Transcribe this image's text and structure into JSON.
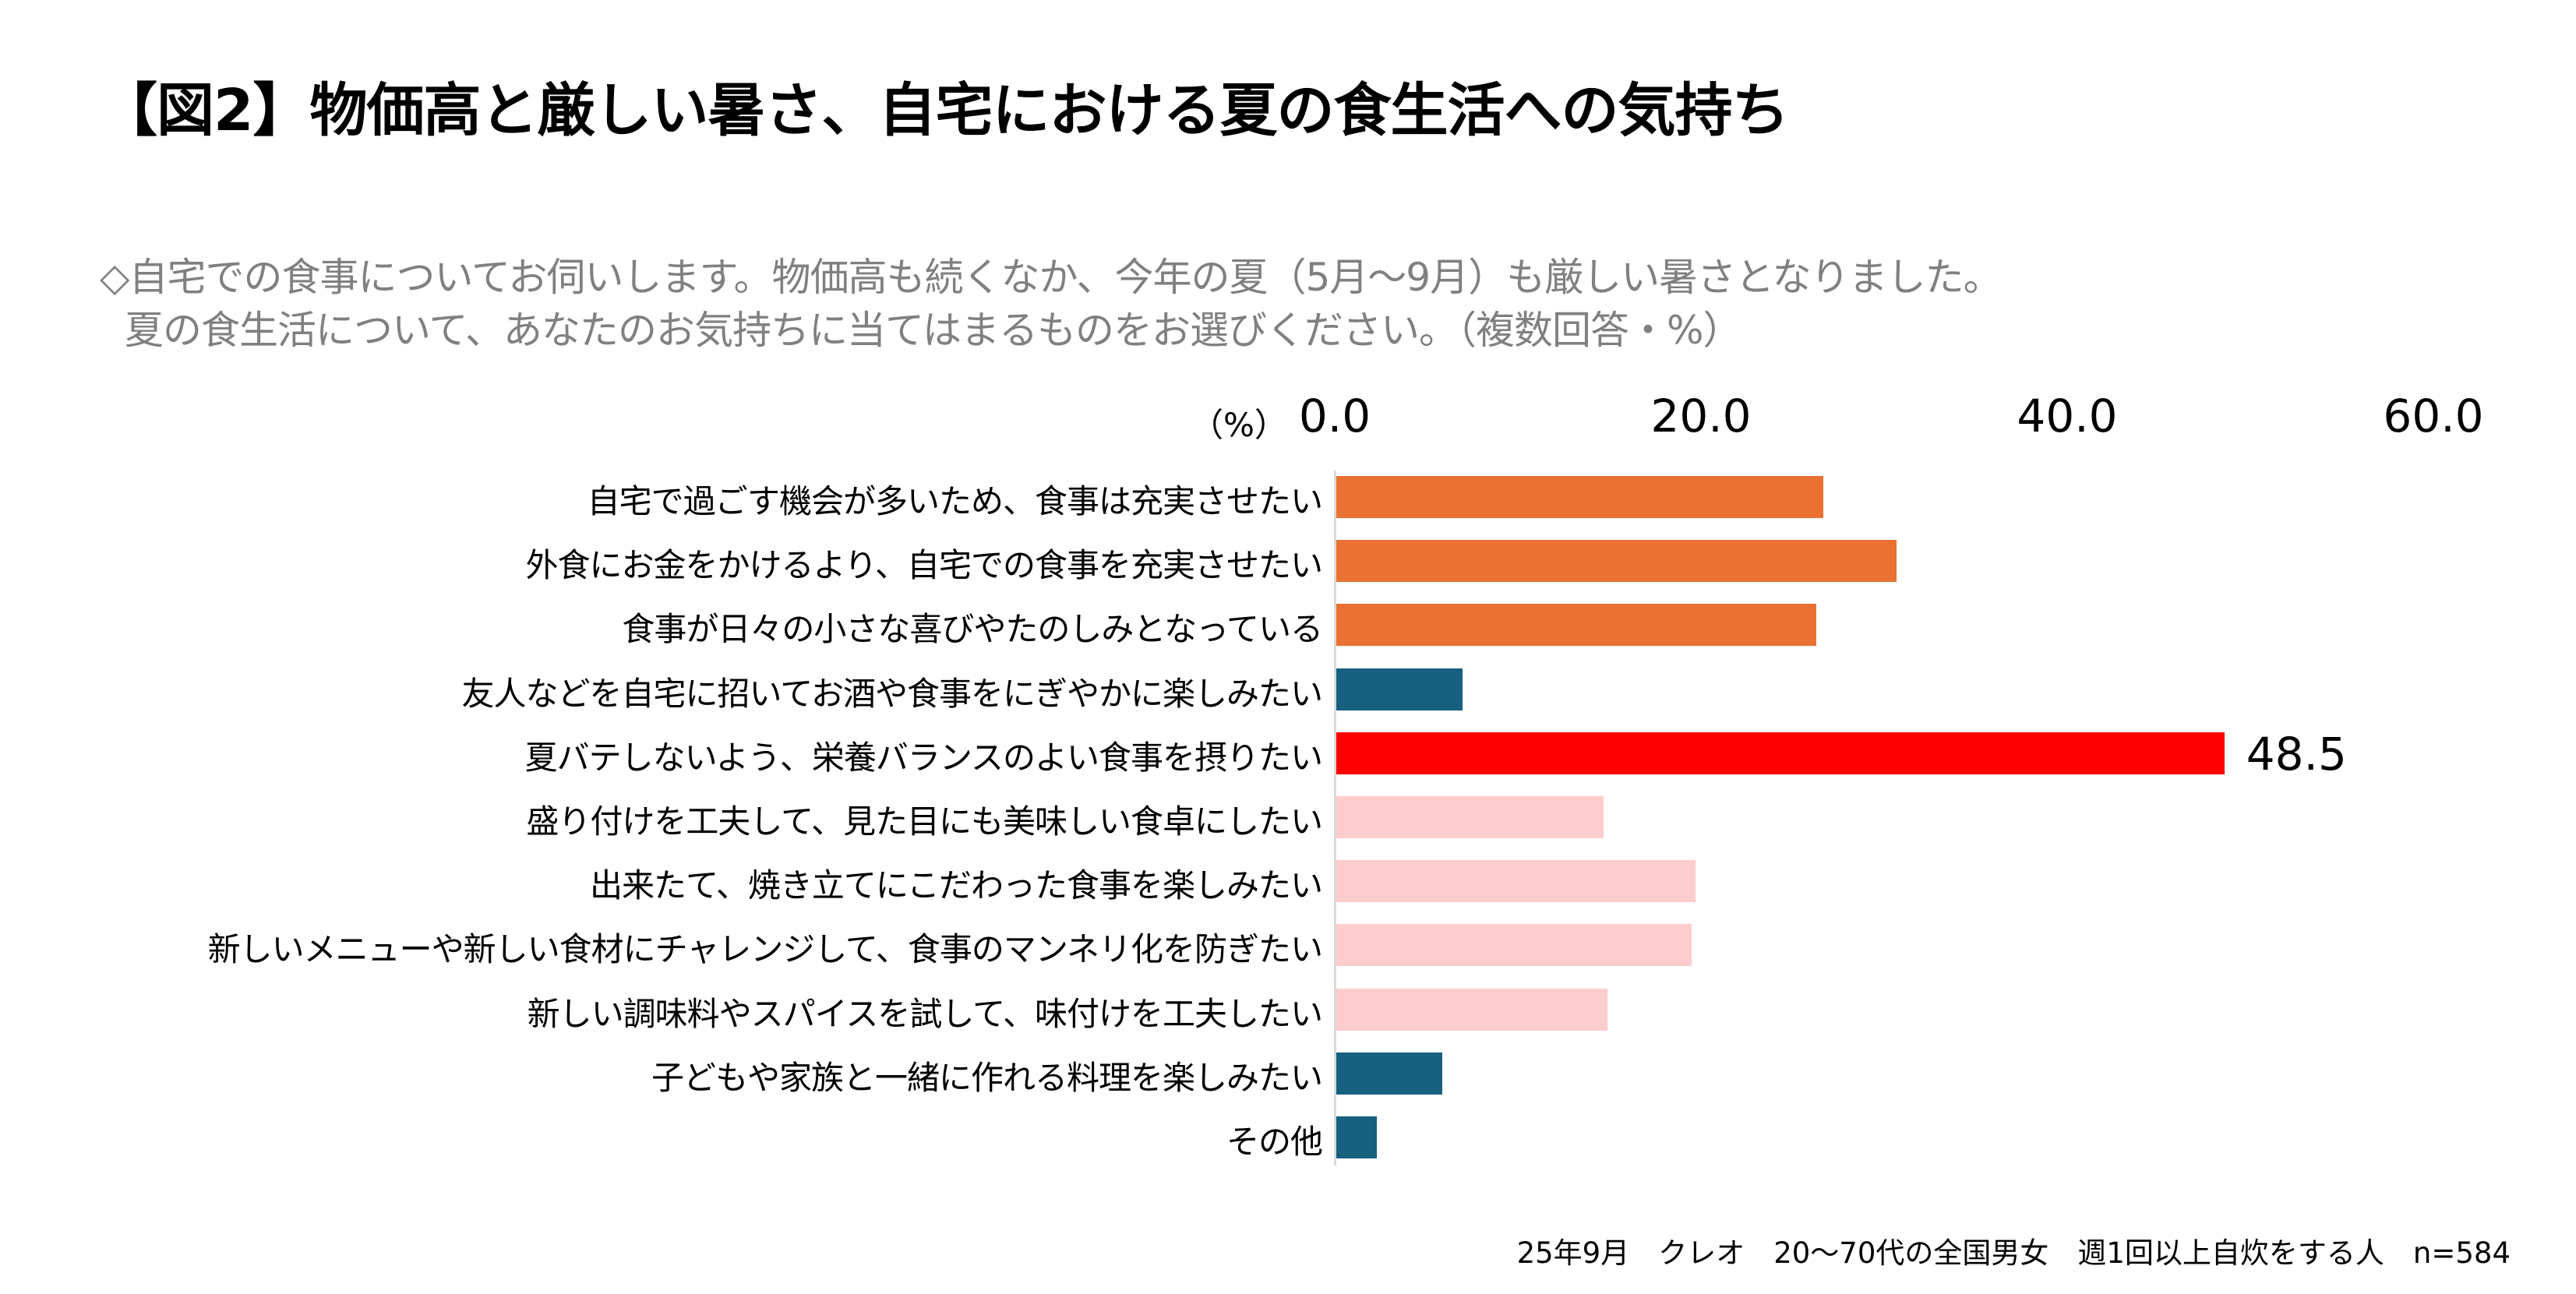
{
  "title": "【図2】物価高と厳しい暑さ、自宅における夏の食生活への気持ち",
  "question": {
    "line1": "◇自宅での食事についてお伺いします。物価高も続くなか、今年の夏（5月～9月）も厳しい暑さとなりました。",
    "line2": "夏の食生活について、あなたのお気持ちに当てはまるものをお選びください。（複数回答・%）"
  },
  "footer": "25年9月　クレオ　20～70代の全国男女　週1回以上自炊をする人　n=584",
  "chart_data": {
    "type": "bar",
    "orientation": "horizontal",
    "unit_label": "（%）",
    "xlim": [
      0,
      60
    ],
    "ticks": [
      "0.0",
      "20.0",
      "40.0",
      "60.0"
    ],
    "tick_values": [
      0,
      20,
      40,
      60
    ],
    "categories": [
      "自宅で過ごす機会が多いため、食事は充実させたい",
      "外食にお金をかけるより、自宅での食事を充実させたい",
      "食事が日々の小さな喜びやたのしみとなっている",
      "友人などを自宅に招いてお酒や食事をにぎやかに楽しみたい",
      "夏バテしないよう、栄養バランスのよい食事を摂りたい",
      "盛り付けを工夫して、見た目にも美味しい食卓にしたい",
      "出来たて、焼き立てにこだわった食事を楽しみたい",
      "新しいメニューや新しい食材にチャレンジして、食事のマンネリ化を防ぎたい",
      "新しい調味料やスパイスを試して、味付けを工夫したい",
      "子どもや家族と一緒に作れる料理を楽しみたい",
      "その他"
    ],
    "values": [
      26.6,
      30.6,
      26.2,
      6.9,
      48.5,
      14.6,
      19.6,
      19.4,
      14.8,
      5.8,
      2.2
    ],
    "colors": [
      "#e97132",
      "#e97132",
      "#e97132",
      "#17607f",
      "#ff0000",
      "#fdcccc",
      "#fdcccc",
      "#fdcccc",
      "#fdcccc",
      "#17607f",
      "#17607f"
    ],
    "data_labels": {
      "4": "48.5"
    }
  }
}
